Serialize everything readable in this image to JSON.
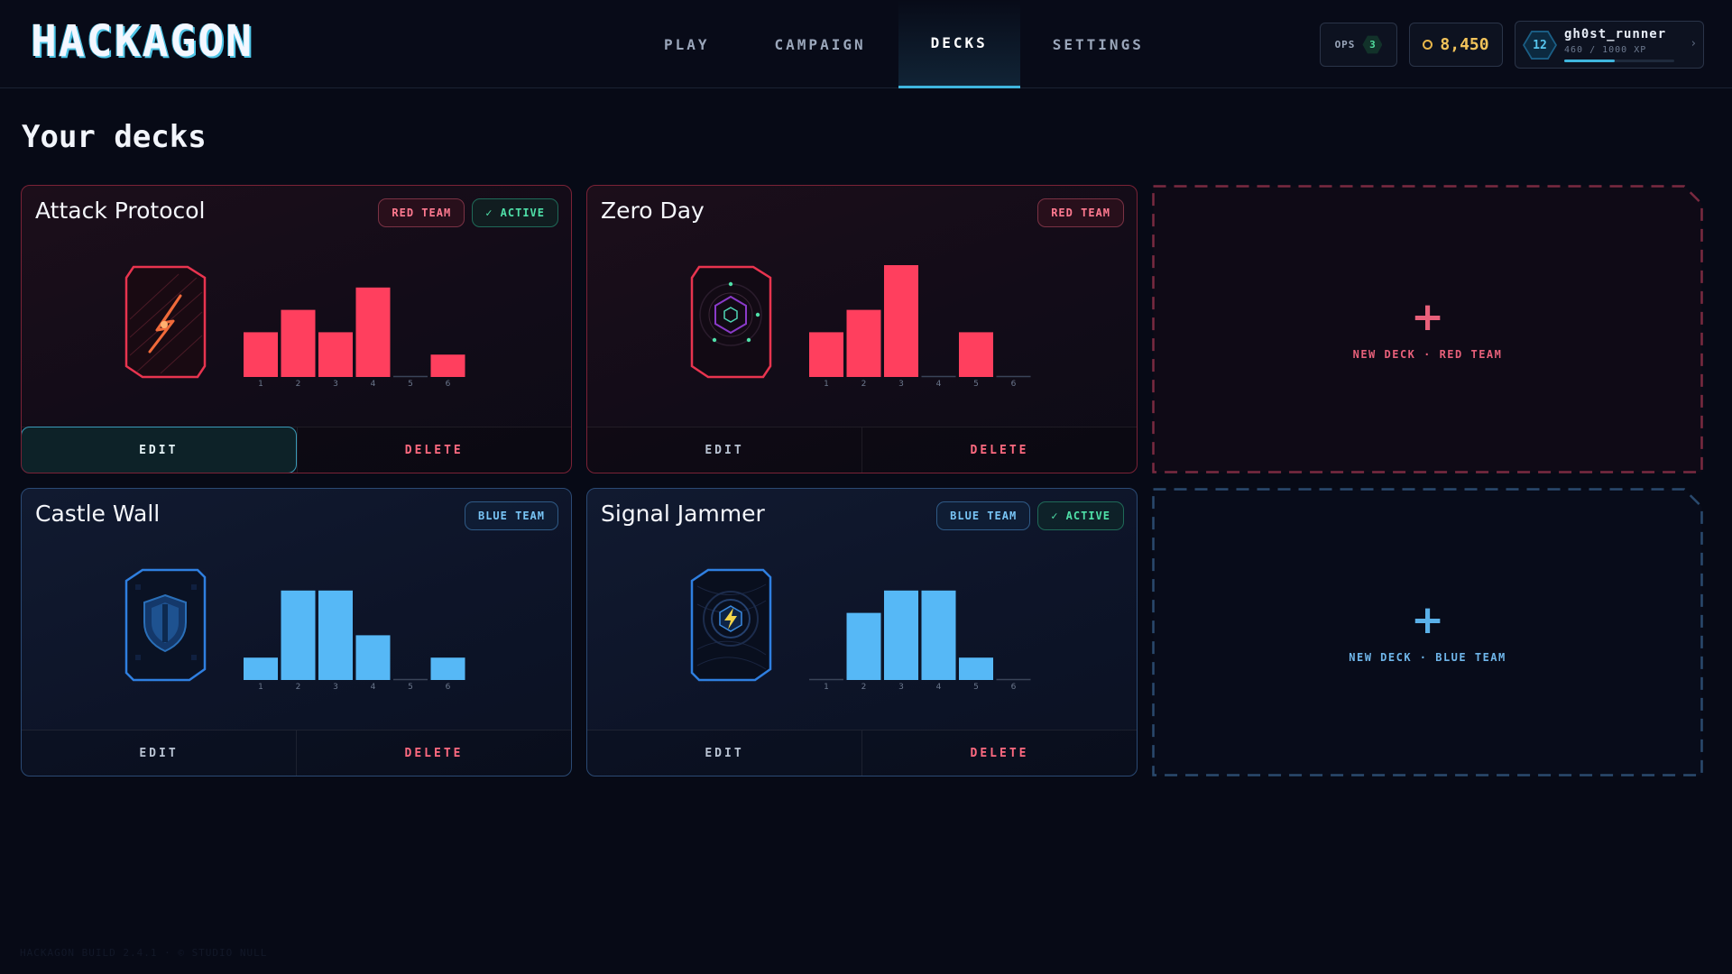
{
  "app": {
    "logo": "HACKAGON"
  },
  "nav": [
    {
      "label": "PLAY",
      "active": false
    },
    {
      "label": "CAMPAIGN",
      "active": false
    },
    {
      "label": "DECKS",
      "active": true
    },
    {
      "label": "SETTINGS",
      "active": false
    }
  ],
  "status": {
    "ops_label": "OPS",
    "ops_count": "3",
    "credits": "8,450",
    "level": "12",
    "username": "gh0st_runner",
    "xp_text": "460 / 1000 XP",
    "xp_fraction": 0.46
  },
  "page": {
    "title": "Your decks"
  },
  "decks": [
    {
      "name": "Attack Protocol",
      "team": "red",
      "team_label": "RED TEAM",
      "active": true,
      "active_label": "✓ ACTIVE",
      "art_icon": "lightning-crack-icon",
      "curve": [
        2,
        3,
        2,
        4,
        0,
        1
      ],
      "edit_label": "EDIT",
      "delete_label": "DELETE",
      "edit_hovered": true
    },
    {
      "name": "Zero Day",
      "team": "red",
      "team_label": "RED TEAM",
      "active": false,
      "active_label": "",
      "art_icon": "hexagon-orbit-icon",
      "curve": [
        2,
        3,
        5,
        0,
        2,
        0
      ],
      "edit_label": "EDIT",
      "delete_label": "DELETE",
      "edit_hovered": false
    },
    {
      "name": "Castle Wall",
      "team": "blue",
      "team_label": "BLUE TEAM",
      "active": false,
      "active_label": "",
      "art_icon": "shield-icon",
      "curve": [
        1,
        4,
        4,
        2,
        0,
        1
      ],
      "edit_label": "EDIT",
      "delete_label": "DELETE",
      "edit_hovered": false
    },
    {
      "name": "Signal Jammer",
      "team": "blue",
      "team_label": "BLUE TEAM",
      "active": true,
      "active_label": "✓ ACTIVE",
      "art_icon": "lightning-bolt-icon",
      "curve": [
        0,
        3,
        4,
        4,
        1,
        0
      ],
      "edit_label": "EDIT",
      "delete_label": "DELETE",
      "edit_hovered": false
    }
  ],
  "curve_labels": [
    "1",
    "2",
    "3",
    "4",
    "5",
    "6"
  ],
  "new_deck": [
    {
      "label": "NEW DECK · RED TEAM",
      "team": "red",
      "plus": "+"
    },
    {
      "label": "NEW DECK · BLUE TEAM",
      "team": "blue",
      "plus": "+"
    }
  ],
  "colors": {
    "red_team": "#ff3f5e",
    "blue_team": "#56b8f6",
    "accent": "#3fb6de",
    "active": "#4fe0a8",
    "credits": "#f2c35a"
  },
  "footer": "HACKAGON BUILD 2.4.1 · © STUDIO NULL"
}
